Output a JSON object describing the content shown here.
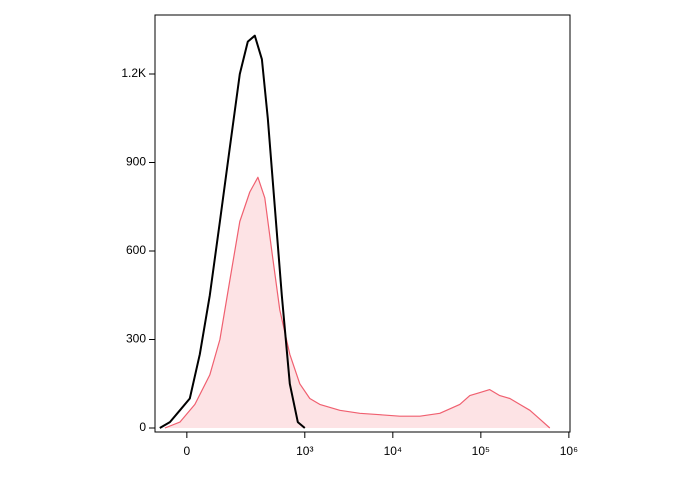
{
  "chart_data": {
    "type": "histogram-overlay",
    "xscale": "symlog",
    "linthresh": 1000,
    "xlim": [
      -270,
      1030000
    ],
    "xticks": [
      0,
      {
        "value": 1000,
        "label": "10³"
      },
      {
        "value": 10000,
        "label": "10⁴"
      },
      {
        "value": 100000,
        "label": "10⁵"
      },
      {
        "value": 1000000,
        "label": "10⁶"
      }
    ],
    "ylim": [
      0,
      1400
    ],
    "yticks": [
      0,
      300,
      600,
      900,
      {
        "value": 1200,
        "label": "1.2K"
      }
    ],
    "series": [
      {
        "color": "#f06070",
        "fill": "#fde3e5",
        "x": [
          -186,
          -59,
          68,
          195,
          280,
          364,
          449,
          534,
          602,
          661,
          720,
          788,
          873,
          958,
          1140,
          1480,
          2500,
          4220,
          7110,
          12000,
          20300,
          34200,
          57700,
          75000,
          97500,
          126000,
          164000,
          214000,
          277000,
          361000,
          468000,
          608000
        ],
        "values": [
          0,
          20,
          80,
          180,
          300,
          500,
          700,
          800,
          850,
          780,
          600,
          400,
          250,
          150,
          100,
          80,
          60,
          50,
          45,
          40,
          40,
          50,
          80,
          110,
          120,
          130,
          110,
          100,
          80,
          60,
          30,
          0
        ]
      },
      {
        "color": "#000000",
        "x": [
          -229,
          -144,
          -59,
          25,
          110,
          195,
          280,
          364,
          449,
          517,
          576,
          636,
          686,
          746,
          805,
          873,
          941,
          1000
        ],
        "values": [
          0,
          20,
          60,
          100,
          250,
          450,
          700,
          950,
          1200,
          1310,
          1330,
          1250,
          1050,
          750,
          450,
          150,
          20,
          0
        ]
      }
    ]
  }
}
